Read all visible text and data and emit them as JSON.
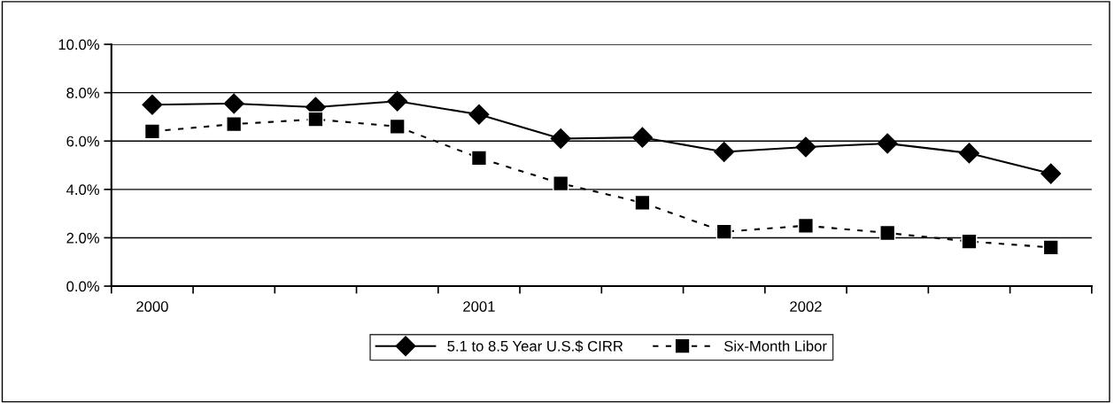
{
  "chart_data": {
    "type": "line",
    "categories": [
      "2000",
      null,
      null,
      null,
      "2001",
      null,
      null,
      null,
      "2002",
      null,
      null,
      null
    ],
    "series": [
      {
        "name": "5.1 to 8.5 Year U.S.$ CIRR",
        "color": "#000000",
        "marker": "diamond",
        "line_style": "solid",
        "values": [
          7.5,
          7.55,
          7.4,
          7.65,
          7.1,
          6.1,
          6.15,
          5.55,
          5.75,
          5.9,
          5.5,
          4.65
        ]
      },
      {
        "name": "Six-Month Libor",
        "color": "#000000",
        "marker": "square",
        "line_style": "dashed",
        "values": [
          6.4,
          6.7,
          6.9,
          6.6,
          5.3,
          4.25,
          3.45,
          2.25,
          2.5,
          2.2,
          1.85,
          1.6
        ]
      }
    ],
    "ylim": [
      0,
      10
    ],
    "yticks": [
      {
        "value": 0,
        "label": "0.0%"
      },
      {
        "value": 2,
        "label": "2.0%"
      },
      {
        "value": 4,
        "label": "4.0%"
      },
      {
        "value": 6,
        "label": "6.0%"
      },
      {
        "value": 8,
        "label": "8.0%"
      },
      {
        "value": 10,
        "label": "10.0%"
      }
    ],
    "grid": "y",
    "legend": "bottom"
  }
}
